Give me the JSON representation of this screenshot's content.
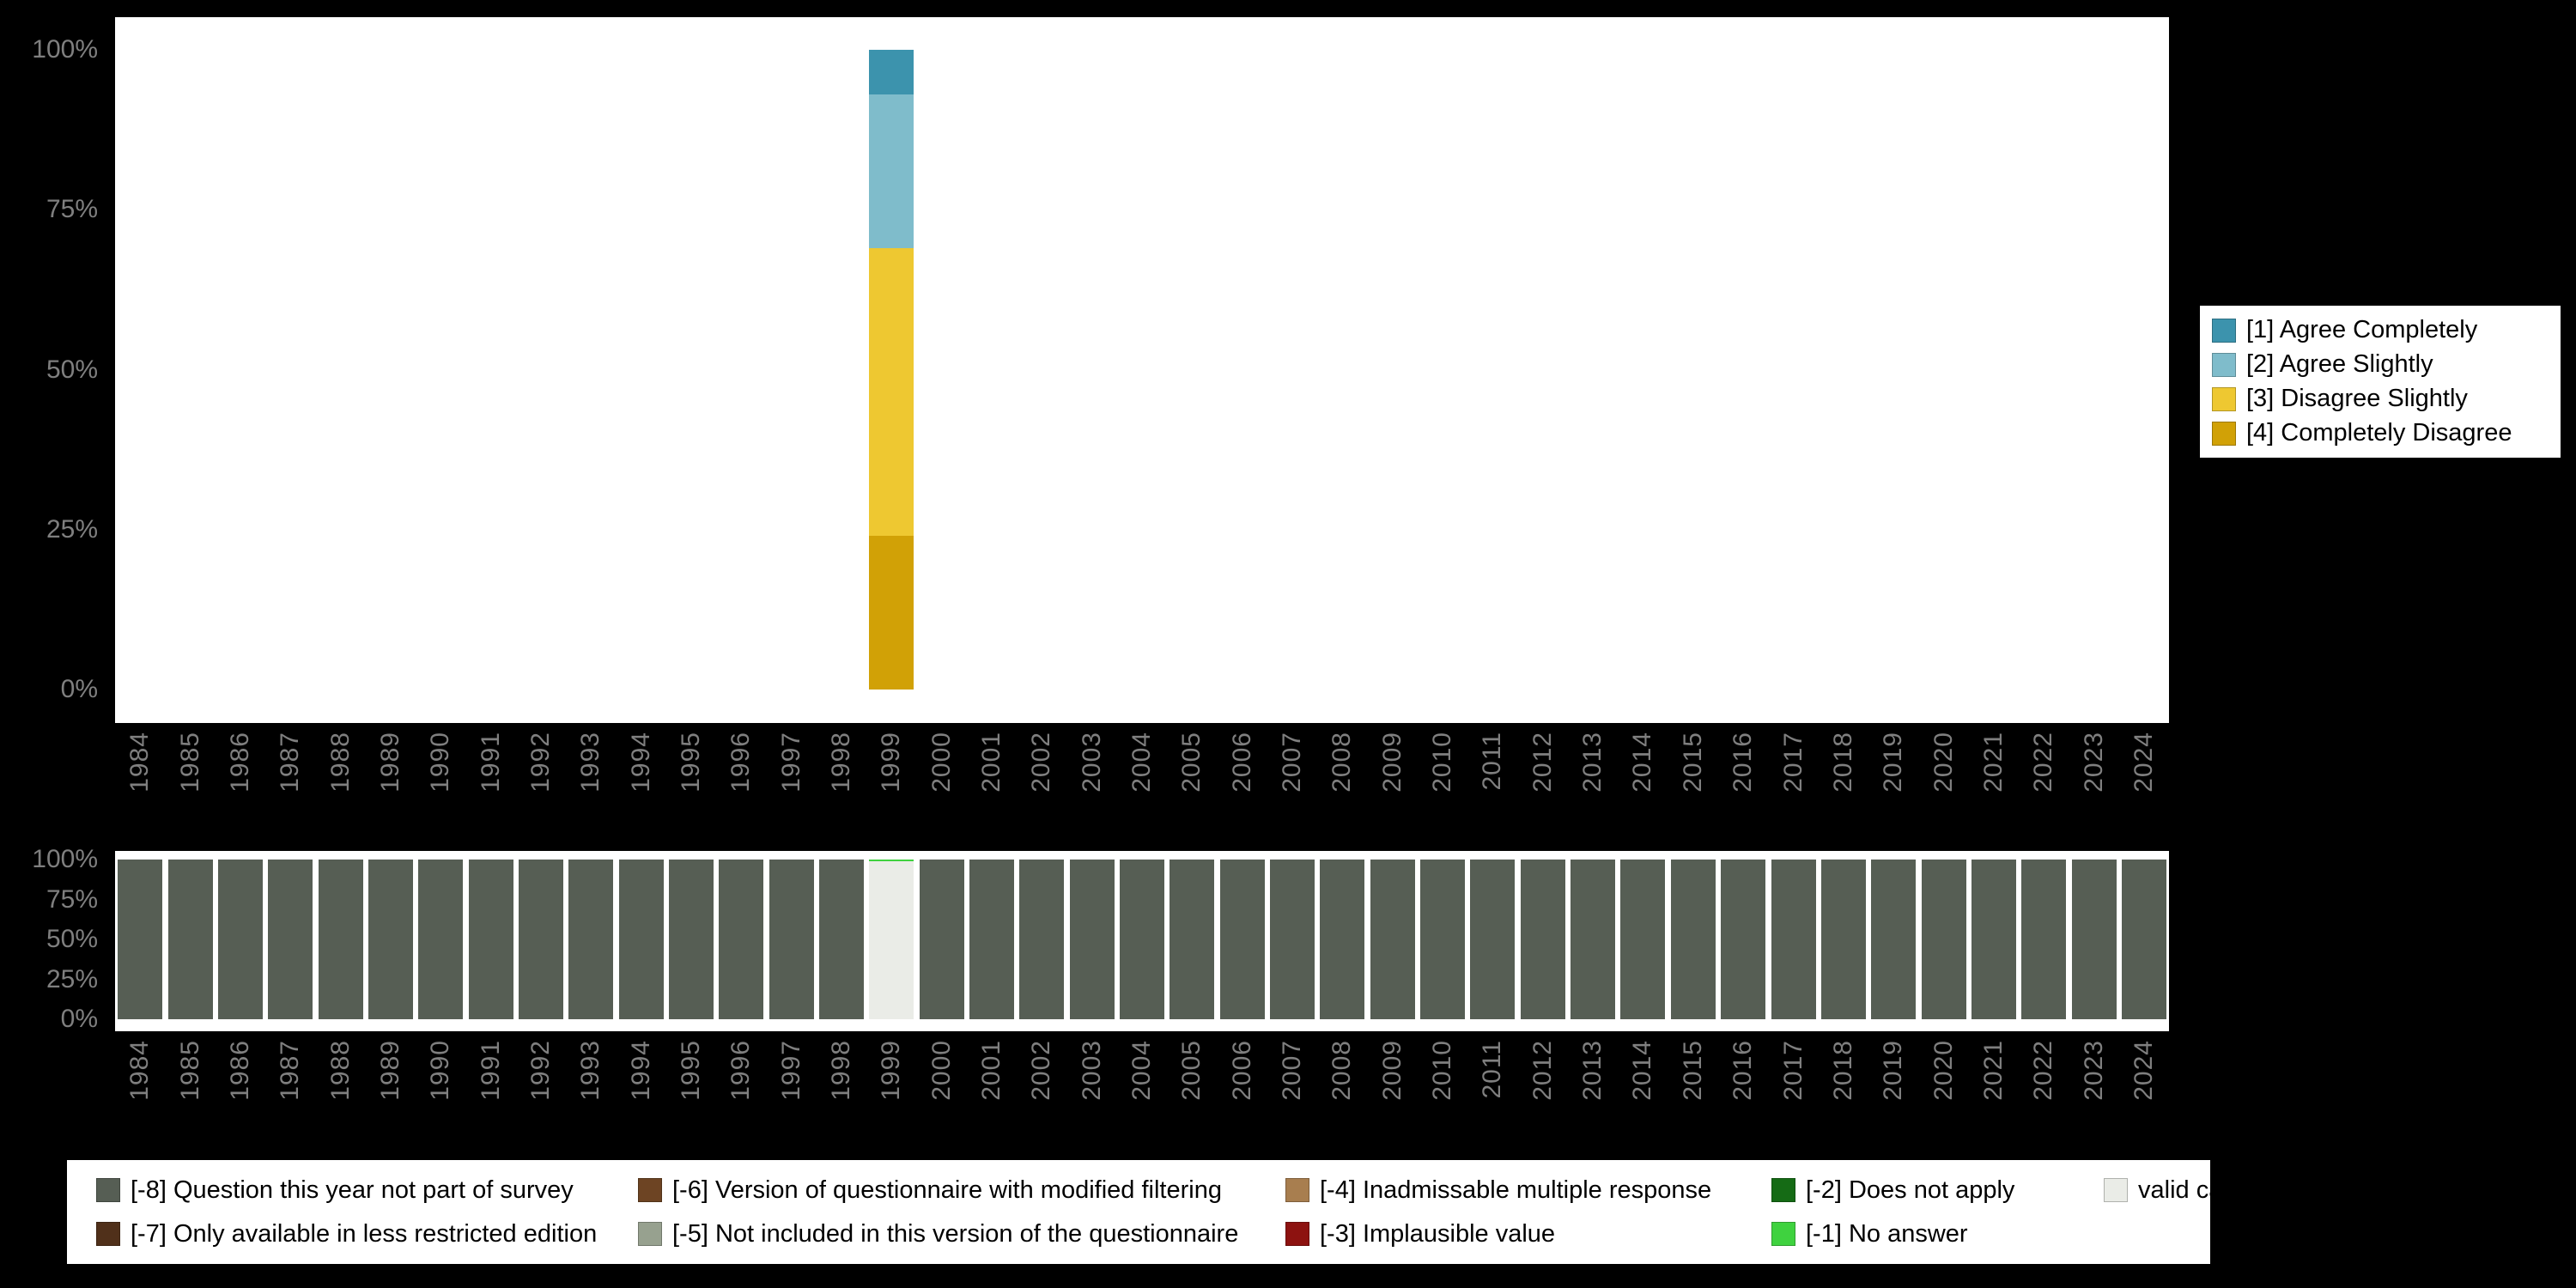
{
  "years": [
    "1984",
    "1985",
    "1986",
    "1987",
    "1988",
    "1989",
    "1990",
    "1991",
    "1992",
    "1993",
    "1994",
    "1995",
    "1996",
    "1997",
    "1998",
    "1999",
    "2000",
    "2001",
    "2002",
    "2003",
    "2004",
    "2005",
    "2006",
    "2007",
    "2008",
    "2009",
    "2010",
    "2011",
    "2012",
    "2013",
    "2014",
    "2015",
    "2016",
    "2017",
    "2018",
    "2019",
    "2020",
    "2021",
    "2022",
    "2023",
    "2024"
  ],
  "axis": {
    "tick_text_color": "#7f7f7f",
    "plot_background": "#ffffff",
    "page_background": "#000000"
  },
  "chart_data": [
    {
      "id": "responses-by-year",
      "type": "bar",
      "stacked": true,
      "unit": "percent",
      "ylim": [
        0,
        100
      ],
      "yticks": [
        "0%",
        "25%",
        "50%",
        "75%",
        "100%"
      ],
      "grid": false,
      "legend_position": "right",
      "series": [
        {
          "name": "[1] Agree Completely",
          "color": "#3c93ad",
          "default": 0,
          "values_by_year": {
            "1999": 7
          }
        },
        {
          "name": "[2] Agree Slightly",
          "color": "#7fbccb",
          "default": 0,
          "values_by_year": {
            "1999": 24
          }
        },
        {
          "name": "[3] Disagree Slightly",
          "color": "#eec831",
          "default": 0,
          "values_by_year": {
            "1999": 45
          }
        },
        {
          "name": "[4] Completely Disagree",
          "color": "#d1a106",
          "default": 0,
          "values_by_year": {
            "1999": 24
          }
        }
      ]
    },
    {
      "id": "missing-values-by-year",
      "type": "bar",
      "stacked": true,
      "unit": "percent",
      "ylim": [
        0,
        100
      ],
      "yticks": [
        "0%",
        "25%",
        "50%",
        "75%",
        "100%"
      ],
      "grid": false,
      "legend_position": "bottom",
      "series": [
        {
          "name": "[-1] No answer",
          "color": "#3fd23f",
          "default": 0,
          "values_by_year": {
            "1999": 1
          }
        },
        {
          "name": "valid cases",
          "color": "#eaece7",
          "default": 0,
          "values_by_year": {
            "1999": 99
          }
        },
        {
          "name": "[-8] Question this year not part of survey",
          "color": "#565e54",
          "default": 100,
          "values_by_year": {
            "1999": 0
          }
        }
      ]
    }
  ],
  "bottom_legend": {
    "columns": [
      [
        {
          "label": "[-8] Question this year not part of survey",
          "color": "#565e54"
        },
        {
          "label": "[-7] Only available in less restricted edition",
          "color": "#50301a"
        }
      ],
      [
        {
          "label": "[-6] Version of questionnaire with modified filtering",
          "color": "#6d4423"
        },
        {
          "label": "[-5] Not included in this version of the questionnaire",
          "color": "#97a18f"
        }
      ],
      [
        {
          "label": "[-4] Inadmissable multiple response",
          "color": "#a87e4f"
        },
        {
          "label": "[-3] Implausible value",
          "color": "#8d1210"
        }
      ],
      [
        {
          "label": "[-2] Does not apply",
          "color": "#156b15"
        },
        {
          "label": "[-1] No answer",
          "color": "#3fd23f"
        }
      ],
      [
        {
          "label": "valid cases",
          "color": "#eaece7"
        }
      ]
    ]
  }
}
